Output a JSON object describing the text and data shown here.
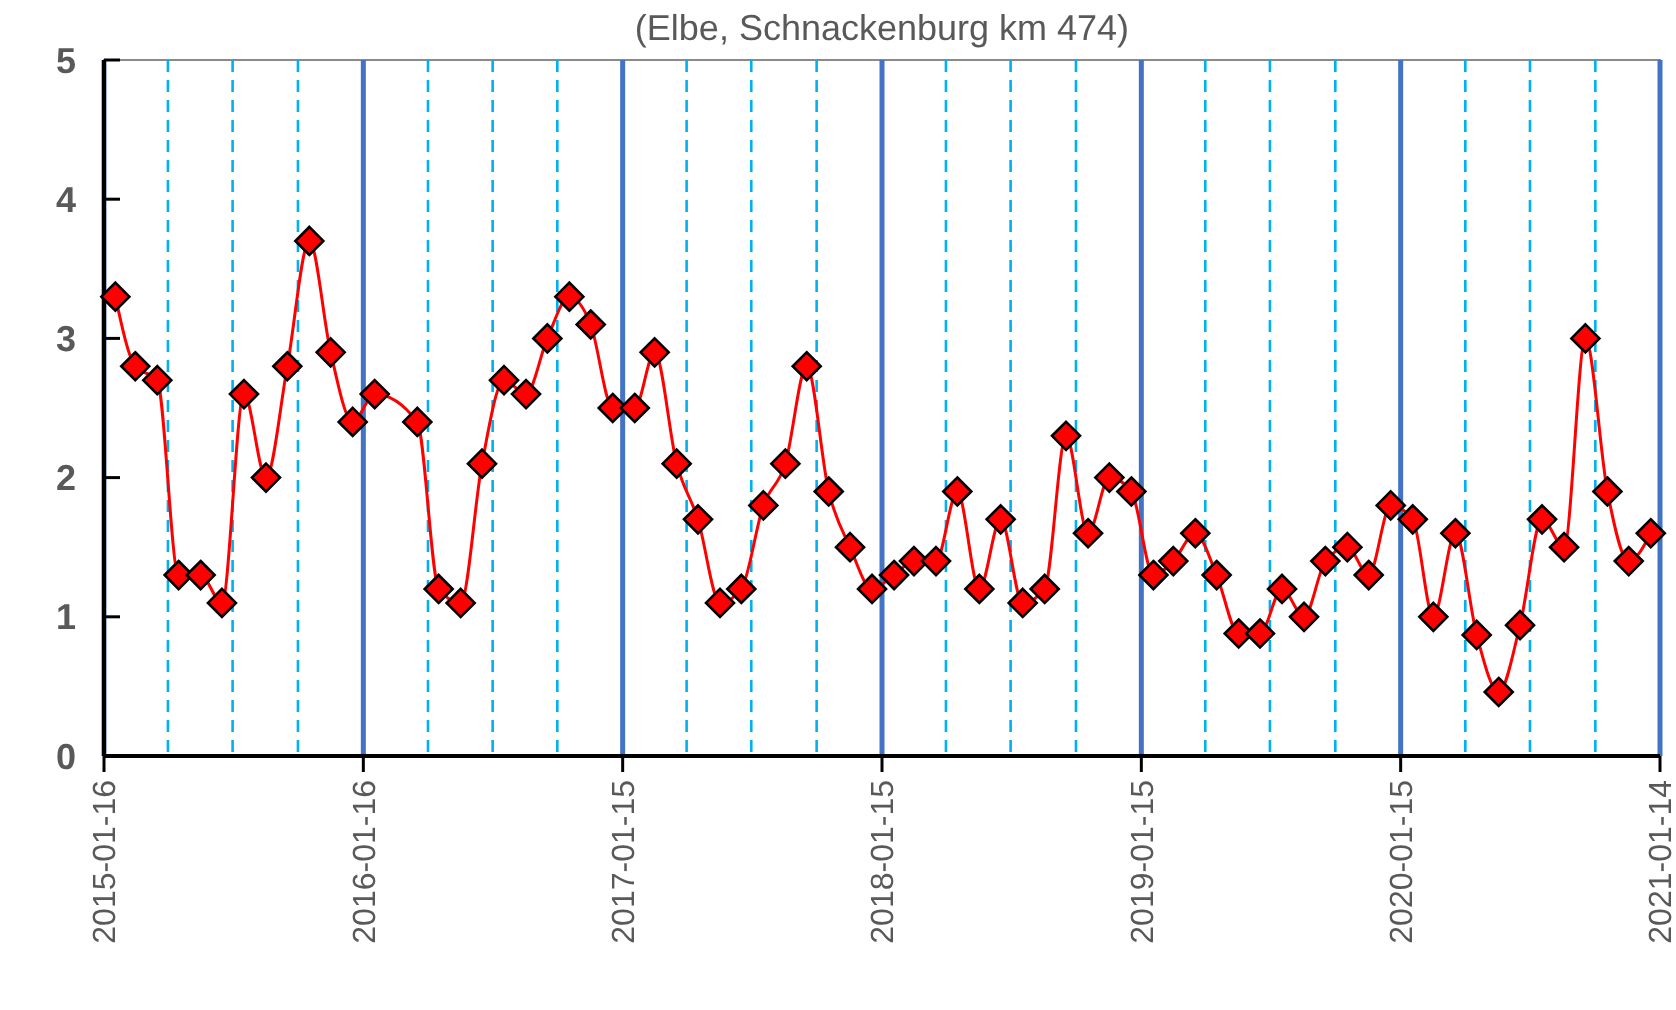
{
  "chart_data": {
    "type": "line",
    "title": "(Elbe, Schnackenburg km 474)",
    "x": [
      "2015-02-01",
      "2015-03-01",
      "2015-04-01",
      "2015-05-01",
      "2015-06-01",
      "2015-07-01",
      "2015-08-01",
      "2015-09-01",
      "2015-10-01",
      "2015-11-01",
      "2015-12-01",
      "2016-01-01",
      "2016-02-01",
      "2016-04-01",
      "2016-05-01",
      "2016-06-01",
      "2016-07-01",
      "2016-08-01",
      "2016-09-01",
      "2016-10-01",
      "2016-11-01",
      "2016-12-01",
      "2017-01-01",
      "2017-02-01",
      "2017-03-01",
      "2017-04-01",
      "2017-05-01",
      "2017-06-01",
      "2017-07-01",
      "2017-08-01",
      "2017-09-01",
      "2017-10-01",
      "2017-11-01",
      "2017-12-01",
      "2018-01-01",
      "2018-02-01",
      "2018-03-01",
      "2018-04-01",
      "2018-05-01",
      "2018-06-01",
      "2018-07-01",
      "2018-08-01",
      "2018-09-01",
      "2018-10-01",
      "2018-11-01",
      "2018-12-01",
      "2019-01-01",
      "2019-02-01",
      "2019-03-01",
      "2019-04-01",
      "2019-05-01",
      "2019-06-01",
      "2019-07-01",
      "2019-08-01",
      "2019-09-01",
      "2019-10-01",
      "2019-11-01",
      "2019-12-01",
      "2020-01-01",
      "2020-02-01",
      "2020-03-01",
      "2020-04-01",
      "2020-05-01",
      "2020-06-01",
      "2020-07-01",
      "2020-08-01",
      "2020-09-01",
      "2020-10-01",
      "2020-11-01",
      "2020-12-01",
      "2021-01-01"
    ],
    "series": [
      {
        "color": "#ff0000",
        "values": [
          3.3,
          2.8,
          2.7,
          1.3,
          1.3,
          1.1,
          2.6,
          2.0,
          2.8,
          3.7,
          2.9,
          2.4,
          2.6,
          2.4,
          1.2,
          1.1,
          2.1,
          2.7,
          2.6,
          3.0,
          3.3,
          3.1,
          2.5,
          2.5,
          2.9,
          2.1,
          1.7,
          1.1,
          1.2,
          1.8,
          2.1,
          2.8,
          1.9,
          1.5,
          1.2,
          1.3,
          1.4,
          1.4,
          1.9,
          1.2,
          1.7,
          1.1,
          1.2,
          2.3,
          1.6,
          2.0,
          1.9,
          1.3,
          1.4,
          1.6,
          1.3,
          0.88,
          0.88,
          1.2,
          1.0,
          1.4,
          1.5,
          1.3,
          1.8,
          1.7,
          1.0,
          1.6,
          0.87,
          0.46,
          0.94,
          1.7,
          1.5,
          3.0,
          1.9,
          1.4,
          1.6
        ]
      }
    ],
    "xlim": [
      "2015-01-16",
      "2021-01-14"
    ],
    "xticks": [
      {
        "value": "2015-01-16",
        "label": "2015-01-16"
      },
      {
        "value": "2015-04-16",
        "label": null
      },
      {
        "value": "2015-07-16",
        "label": null
      },
      {
        "value": "2015-10-16",
        "label": null
      },
      {
        "value": "2016-01-16",
        "label": "2016-01-16"
      },
      {
        "value": "2016-04-16",
        "label": null
      },
      {
        "value": "2016-07-16",
        "label": null
      },
      {
        "value": "2016-10-15",
        "label": null
      },
      {
        "value": "2017-01-15",
        "label": "2017-01-15"
      },
      {
        "value": "2017-04-15",
        "label": null
      },
      {
        "value": "2017-07-15",
        "label": null
      },
      {
        "value": "2017-10-15",
        "label": null
      },
      {
        "value": "2018-01-15",
        "label": "2018-01-15"
      },
      {
        "value": "2018-04-15",
        "label": null
      },
      {
        "value": "2018-07-15",
        "label": null
      },
      {
        "value": "2018-10-15",
        "label": null
      },
      {
        "value": "2019-01-15",
        "label": "2019-01-15"
      },
      {
        "value": "2019-04-15",
        "label": null
      },
      {
        "value": "2019-07-15",
        "label": null
      },
      {
        "value": "2019-10-15",
        "label": null
      },
      {
        "value": "2020-01-15",
        "label": "2020-01-15"
      },
      {
        "value": "2020-04-15",
        "label": null
      },
      {
        "value": "2020-07-15",
        "label": null
      },
      {
        "value": "2020-10-15",
        "label": null
      },
      {
        "value": "2021-01-14",
        "label": "2021-01-14"
      }
    ],
    "ylim": [
      0,
      5
    ],
    "yticks": [
      0,
      1,
      2,
      3,
      4,
      5
    ],
    "grid": "x",
    "marker": "diamond",
    "line_style": "solid"
  }
}
